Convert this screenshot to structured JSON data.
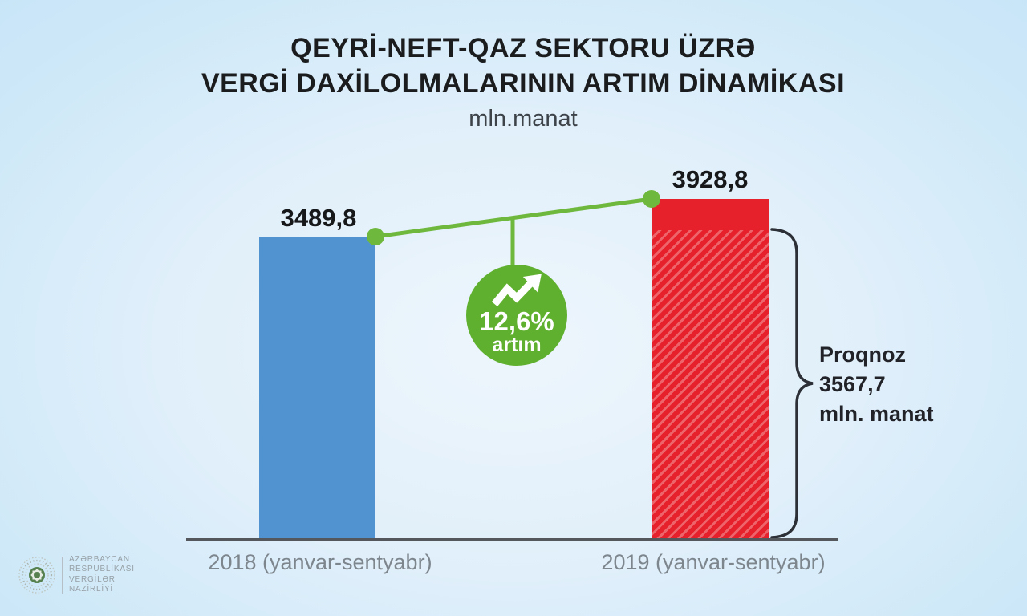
{
  "title": {
    "line1": "QEYRİ-NEFT-QAZ SEKTORU ÜZRƏ",
    "line2": "VERGİ DAXİLOLMALARININ ARTIM DİNAMİKASI",
    "unit": "mln.manat"
  },
  "chart_data": {
    "type": "bar",
    "title": "QEYRİ-NEFT-QAZ SEKTORU ÜZRƏ VERGİ DAXİLOLMALARININ ARTIM DİNAMİKASI",
    "unit": "mln.manat",
    "categories": [
      "2018 (yanvar-sentyabr)",
      "2019 (yanvar-sentyabr)"
    ],
    "values": [
      3489.8,
      3928.8
    ],
    "value_labels": [
      "3489,8",
      "3928,8"
    ],
    "bar_colors": [
      "#5193d1",
      "#e6212b"
    ],
    "growth": {
      "percent": "12,6%",
      "word": "artım",
      "value_pct": 12.6,
      "badge_color": "#60b02f"
    },
    "forecast": {
      "value": 3567.7,
      "lines": [
        "Proqnoz",
        "3567,7",
        "mln. manat"
      ],
      "applies_to": "2019 (yanvar-sentyabr)",
      "style": "hatched-area-of-2019-bar"
    },
    "ylim": [
      0,
      4000
    ],
    "grid": false,
    "legend": false
  },
  "footer": {
    "org_lines": [
      "AZƏRBAYCAN",
      "RESPUBLİKASI",
      "VERGİLƏR",
      "NAZİRLİYİ"
    ]
  }
}
